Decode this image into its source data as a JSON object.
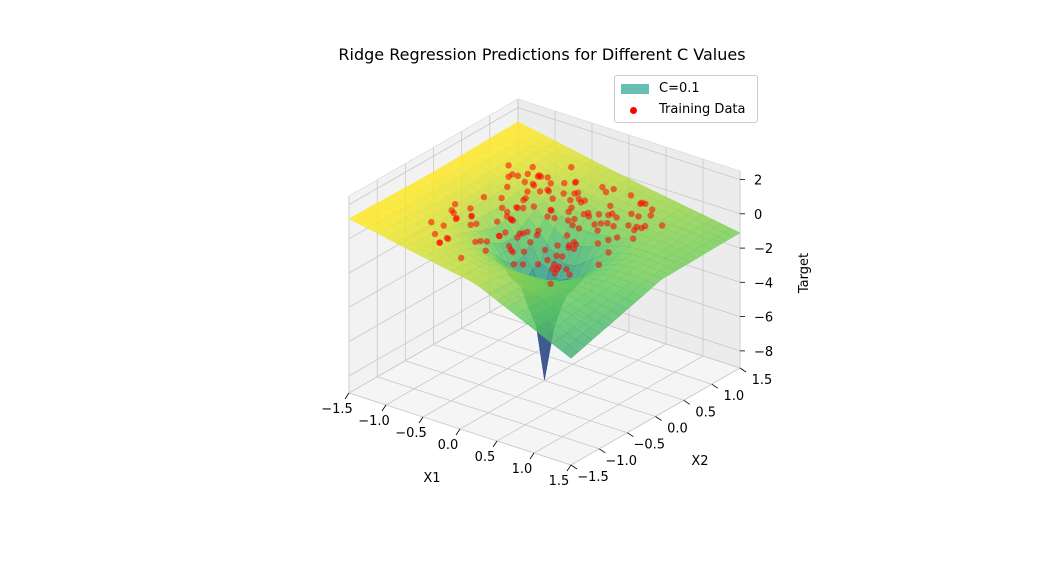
{
  "chart_data": {
    "type": "surface3d",
    "title": "Ridge Regression Predictions for Different C Values",
    "xlabel": "X1",
    "ylabel": "X2",
    "zlabel": "Target",
    "x_ticks": [
      "−1.5",
      "−1.0",
      "−0.5",
      "0.0",
      "0.5",
      "1.0",
      "1.5"
    ],
    "y_ticks": [
      "−1.5",
      "−1.0",
      "−0.5",
      "0.0",
      "0.5",
      "1.0",
      "1.5"
    ],
    "z_ticks": [
      "−8",
      "−6",
      "−4",
      "−2",
      "0",
      "2"
    ],
    "xlim": [
      -1.5,
      1.5
    ],
    "ylim": [
      -1.5,
      1.5
    ],
    "zlim": [
      -9,
      2.5
    ],
    "legend": [
      {
        "label": "C=0.1",
        "kind": "surface",
        "color": "#66bfb0"
      },
      {
        "label": "Training Data",
        "kind": "scatter",
        "color": "#ff0000"
      }
    ],
    "legend_position": "top-right",
    "colormap": "viridis",
    "surface_function": "prediction surface with sharp minimum near (0, 0) reaching about -9; values approach 0 to 1 toward the x1 = -1.5 edge",
    "surface_range": [
      -9,
      1
    ],
    "series": [
      {
        "name": "Training Data",
        "kind": "scatter",
        "color": "#ff0000",
        "points_estimated_count": 150,
        "x_range": [
          -1.0,
          1.0
        ],
        "y_range": [
          -1.0,
          1.0
        ],
        "z_range": [
          -1.5,
          1.5
        ]
      }
    ],
    "grid": true
  }
}
